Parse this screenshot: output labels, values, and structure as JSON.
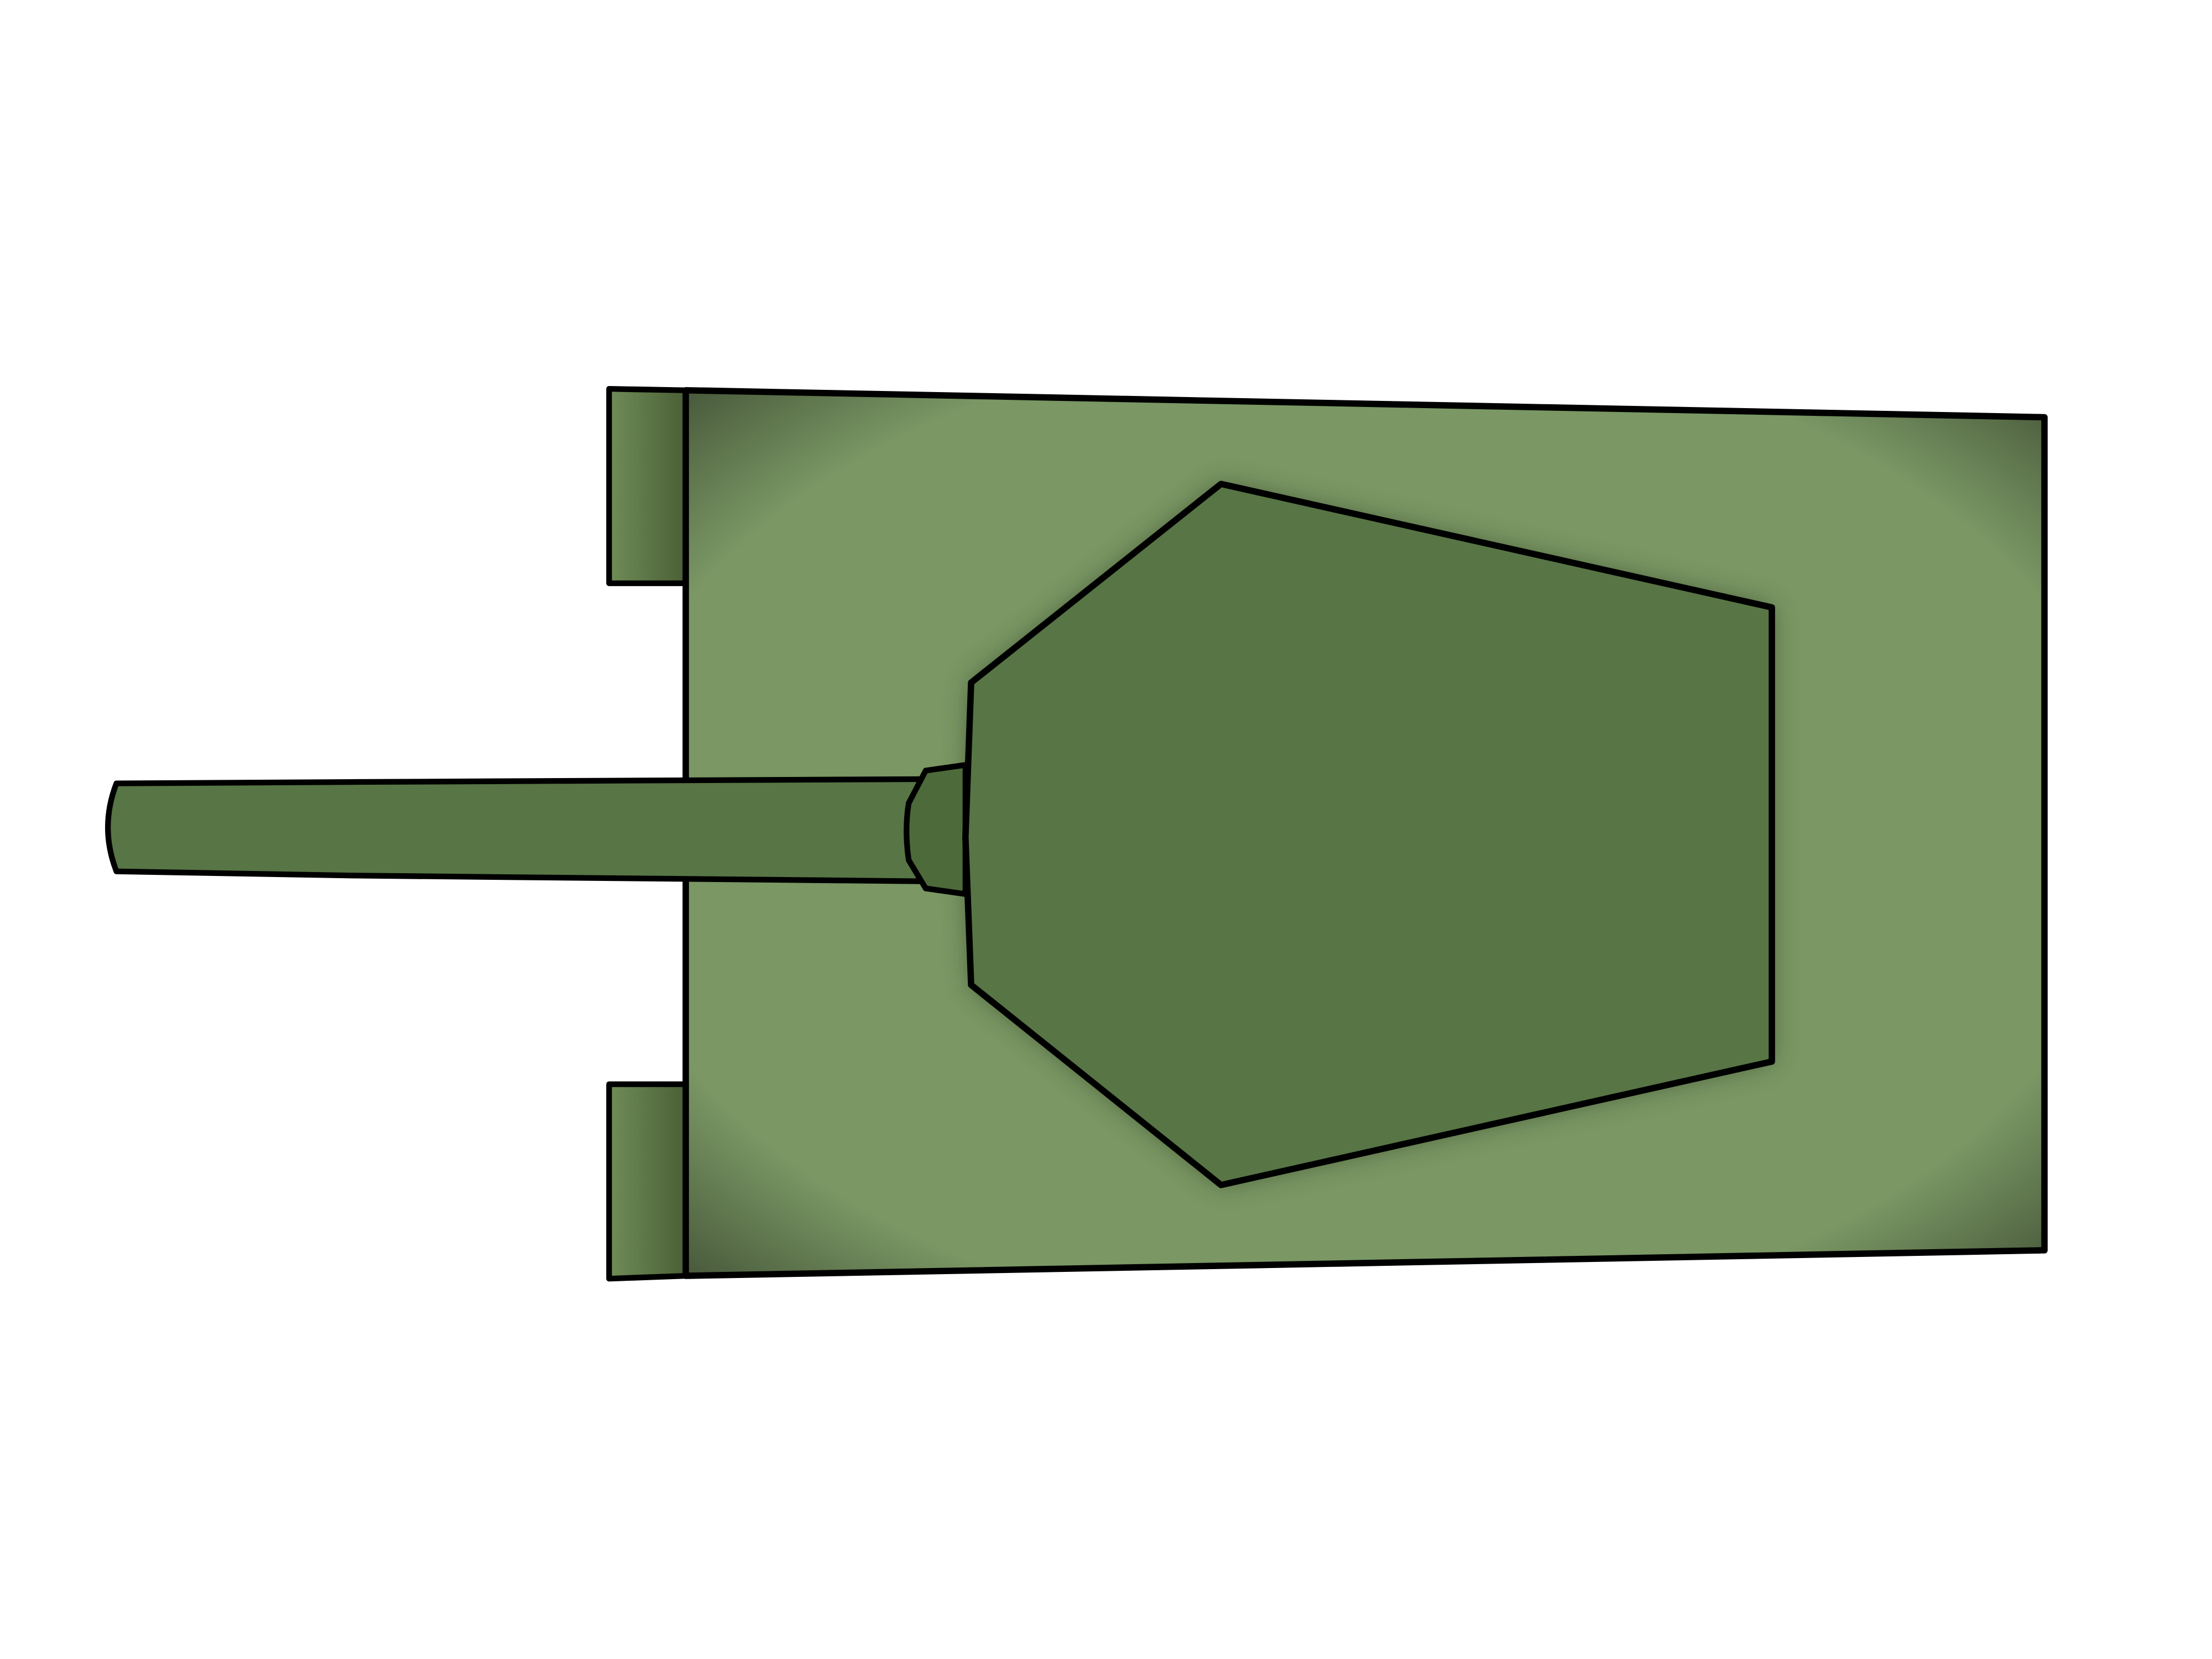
{
  "sprite": {
    "subject": "tank-top-down",
    "heading": "left",
    "layers": [
      "hull",
      "rear-tracks",
      "gun-barrel",
      "gun-mantlet",
      "turret"
    ]
  },
  "palette": {
    "background": "#ffffff",
    "hull": "#7a9764",
    "hull_shade": "#4d6338",
    "track": "#6f8c58",
    "track_shade": "#4a5f35",
    "turret": "#587545",
    "turret_shadow": "#2e3d22",
    "barrel": "#587545",
    "mantlet": "#4d6a3b",
    "outline": "#000000"
  }
}
